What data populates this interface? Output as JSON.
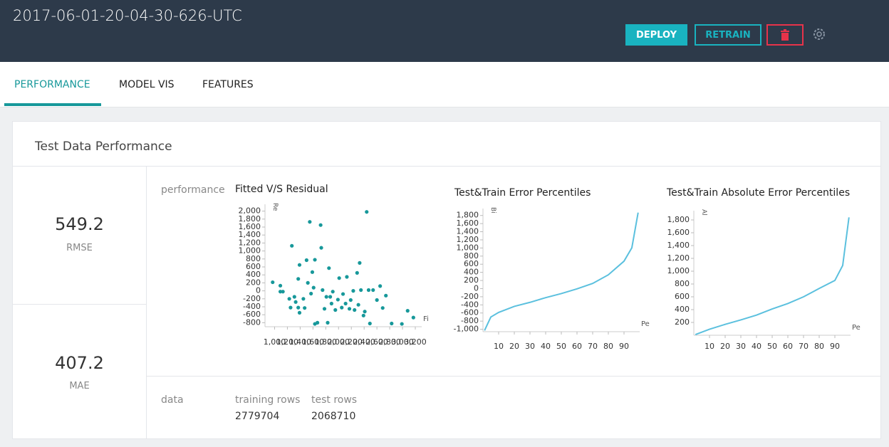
{
  "header": {
    "title": "2017-06-01-20-04-30-626-UTC",
    "buttons": [
      "DEPLOY",
      "RETRAIN"
    ]
  },
  "tabs": [
    "PERFORMANCE",
    "MODEL VIS",
    "FEATURES"
  ],
  "panel": {
    "title": "Test Data Performance",
    "metrics": [
      {
        "value": 549.2,
        "label": "RMSE"
      },
      {
        "value": 407.2,
        "label": "MAE"
      }
    ],
    "performance_label": "performance",
    "data_label": "data",
    "data_stats": [
      {
        "label": "training rows",
        "value": 2779704
      },
      {
        "label": "test rows",
        "value": 2068710
      }
    ]
  },
  "chart_data": [
    {
      "type": "scatter",
      "title": "Fitted V/S Residual",
      "x_label": "Fi",
      "y_label": "Re",
      "color": "#17989a",
      "x": [
        970,
        1090,
        1090,
        1130,
        1230,
        1250,
        1270,
        1310,
        1330,
        1370,
        1390,
        1370,
        1390,
        1450,
        1470,
        1500,
        1520,
        1550,
        1570,
        1590,
        1610,
        1630,
        1670,
        1630,
        1720,
        1730,
        1750,
        1780,
        1810,
        1850,
        1830,
        1870,
        1890,
        1910,
        1950,
        1990,
        2010,
        2050,
        2070,
        2110,
        2130,
        2170,
        2190,
        2230,
        2250,
        2290,
        2310,
        2330,
        2350,
        2390,
        2410,
        2440,
        2470,
        2490,
        2540,
        2600,
        2650,
        2690,
        2740,
        2830,
        2990,
        3080,
        3170
      ],
      "values": [
        215,
        130,
        -20,
        -20,
        -200,
        -420,
        1130,
        -150,
        -280,
        -420,
        -550,
        300,
        650,
        -200,
        -430,
        770,
        200,
        1730,
        -70,
        470,
        80,
        -830,
        -800,
        780,
        1650,
        1080,
        20,
        -450,
        -150,
        570,
        -800,
        -150,
        -320,
        -20,
        -480,
        -220,
        320,
        -420,
        -80,
        -320,
        350,
        -450,
        -230,
        0,
        -480,
        450,
        -350,
        700,
        20,
        -620,
        -520,
        1980,
        20,
        -820,
        20,
        -230,
        120,
        -430,
        -120,
        -820,
        -830,
        -500,
        -670
      ],
      "xlim": [
        850,
        3300
      ],
      "xticks": [
        {
          "value": 1000,
          "label": "1,000"
        },
        {
          "value": 1200,
          "label": "1,200"
        },
        {
          "value": 1400,
          "label": "1,400"
        },
        {
          "value": 1600,
          "label": "1,600"
        },
        {
          "value": 1800,
          "label": "1,800"
        },
        {
          "value": 2000,
          "label": "2,000"
        },
        {
          "value": 2200,
          "label": "2,200"
        },
        {
          "value": 2400,
          "label": "2,400"
        },
        {
          "value": 2600,
          "label": "2,600"
        },
        {
          "value": 2800,
          "label": "2,800"
        },
        {
          "value": 3000,
          "label": "3,000"
        },
        {
          "value": 3200,
          "label": "3,200"
        }
      ],
      "ylim": [
        -900,
        2100
      ],
      "yticks": [
        {
          "value": 2000,
          "label": "2,000"
        },
        {
          "value": 1800,
          "label": "1,800"
        },
        {
          "value": 1600,
          "label": "1,600"
        },
        {
          "value": 1400,
          "label": "1,400"
        },
        {
          "value": 1200,
          "label": "1,200"
        },
        {
          "value": 1000,
          "label": "1,000"
        },
        800,
        600,
        400,
        200,
        0,
        -200,
        -400,
        -600,
        -800
      ]
    },
    {
      "type": "line",
      "title": "Test&Train Error Percentiles",
      "x_label": "Pe",
      "y_label": "Bi",
      "color": "#5bc0de",
      "x": [
        1,
        5,
        10,
        20,
        30,
        40,
        50,
        60,
        70,
        80,
        90,
        95,
        99
      ],
      "values": [
        -1030,
        -700,
        -586,
        -437,
        -338,
        -222,
        -122,
        -6,
        127,
        340,
        675,
        1005,
        1870
      ],
      "xlim": [
        0,
        100
      ],
      "xticks": [
        10,
        20,
        30,
        40,
        50,
        60,
        70,
        80,
        90
      ],
      "ylim": [
        -1060,
        1900
      ],
      "yticks": [
        {
          "value": 1800,
          "label": "1,800"
        },
        {
          "value": 1600,
          "label": "1,600"
        },
        {
          "value": 1400,
          "label": "1,400"
        },
        {
          "value": 1200,
          "label": "1,200"
        },
        {
          "value": 1000,
          "label": "1,000"
        },
        800,
        600,
        400,
        200,
        0,
        -200,
        -400,
        -600,
        -800,
        {
          "value": -1000,
          "label": "-1,000"
        }
      ]
    },
    {
      "type": "line",
      "title": "Test&Train Absolute Error Percentiles",
      "x_label": "Pe",
      "y_label": "Al",
      "color": "#5bc0de",
      "x": [
        1,
        10,
        20,
        30,
        40,
        50,
        60,
        70,
        80,
        90,
        95,
        99
      ],
      "values": [
        10,
        94,
        170,
        240,
        315,
        410,
        495,
        600,
        730,
        855,
        1090,
        1840
      ],
      "xlim": [
        0,
        100
      ],
      "xticks": [
        10,
        20,
        30,
        40,
        50,
        60,
        70,
        80,
        90
      ],
      "ylim": [
        0,
        1900
      ],
      "yticks": [
        {
          "value": 1800,
          "label": "1,800"
        },
        {
          "value": 1600,
          "label": "1,600"
        },
        {
          "value": 1400,
          "label": "1,400"
        },
        {
          "value": 1200,
          "label": "1,200"
        },
        {
          "value": 1000,
          "label": "1,000"
        },
        800,
        600,
        400,
        200
      ]
    }
  ]
}
